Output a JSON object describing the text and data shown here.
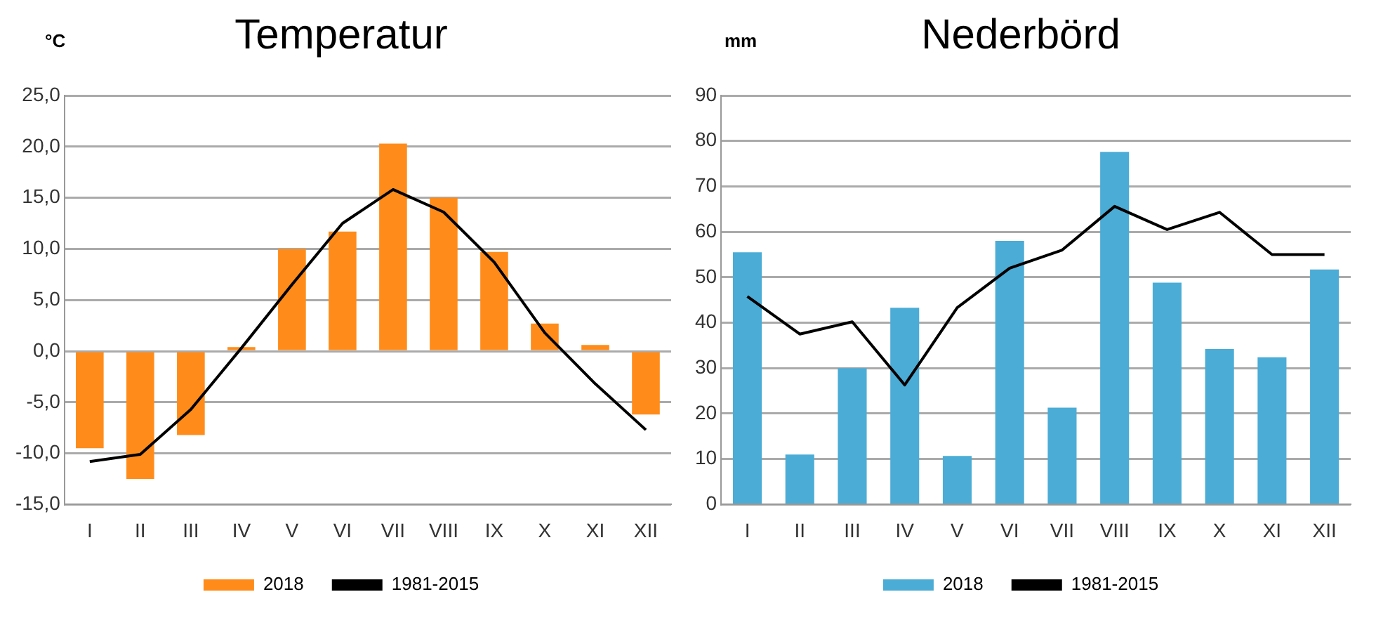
{
  "chart_data": [
    {
      "type": "bar",
      "title": "Temperatur",
      "ylabel": "°C",
      "categories": [
        "I",
        "II",
        "III",
        "IV",
        "V",
        "VI",
        "VII",
        "VIII",
        "IX",
        "X",
        "XI",
        "XII"
      ],
      "series": [
        {
          "name": "2018",
          "color": "#ff8c1a",
          "values": [
            -9.5,
            -12.5,
            -8.2,
            0.4,
            10.0,
            11.7,
            20.3,
            15.0,
            9.7,
            2.7,
            0.6,
            -6.2
          ]
        },
        {
          "name": "1981-2015",
          "type": "line",
          "color": "#000000",
          "values": [
            -10.8,
            -10.1,
            -5.7,
            0.3,
            6.5,
            12.5,
            15.8,
            13.6,
            8.7,
            1.8,
            -3.2,
            -7.7
          ]
        }
      ],
      "ylim": [
        -15,
        25
      ],
      "yticks": [
        {
          "value": -15,
          "label": "-15,0"
        },
        {
          "value": -10,
          "label": "-10,0"
        },
        {
          "value": -5,
          "label": "-5,0"
        },
        {
          "value": 0,
          "label": "0,0"
        },
        {
          "value": 5,
          "label": "5,0"
        },
        {
          "value": 10,
          "label": "10,0"
        },
        {
          "value": 15,
          "label": "15,0"
        },
        {
          "value": 20,
          "label": "20,0"
        },
        {
          "value": 25,
          "label": "25,0"
        }
      ],
      "grid": "y",
      "legend": "bottom",
      "marker": "none"
    },
    {
      "type": "bar",
      "title": "Nederbörd",
      "ylabel": "mm",
      "categories": [
        "I",
        "II",
        "III",
        "IV",
        "V",
        "VI",
        "VII",
        "VIII",
        "IX",
        "X",
        "XI",
        "XII"
      ],
      "series": [
        {
          "name": "2018",
          "color": "#4bacd6",
          "values": [
            55.5,
            11,
            30,
            43.3,
            10.7,
            58,
            21.3,
            77.6,
            48.8,
            34.2,
            32.4,
            51.7
          ]
        },
        {
          "name": "1981-2015",
          "type": "line",
          "color": "#000000",
          "values": [
            45.8,
            37.5,
            40.2,
            26.3,
            43.3,
            52,
            56,
            65.6,
            60.5,
            64.3,
            55,
            55
          ]
        }
      ],
      "ylim": [
        0,
        90
      ],
      "yticks": [
        0,
        10,
        20,
        30,
        40,
        50,
        60,
        70,
        80,
        90
      ],
      "grid": "y",
      "legend": "bottom",
      "marker": "none"
    }
  ]
}
